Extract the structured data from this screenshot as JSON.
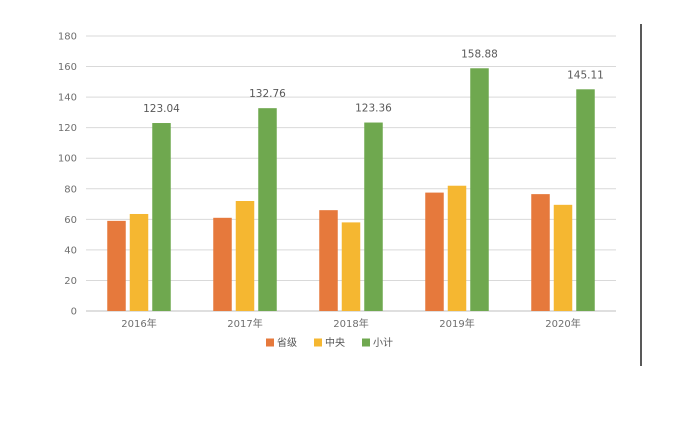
{
  "chart_data": {
    "type": "bar",
    "categories": [
      "2016年",
      "2017年",
      "2018年",
      "2019年",
      "2020年"
    ],
    "series": [
      {
        "name": "省级",
        "values": [
          59,
          61,
          66,
          77.5,
          76.5
        ],
        "color": "#e6793c"
      },
      {
        "name": "中央",
        "values": [
          63.5,
          72,
          58,
          82,
          69.5
        ],
        "color": "#f5b731"
      },
      {
        "name": "小计",
        "values": [
          123.04,
          132.76,
          123.36,
          158.88,
          145.11
        ],
        "color": "#6fa84f"
      }
    ],
    "data_labels": [
      "123.04",
      "132.76",
      "123.36",
      "158.88",
      "145.11"
    ],
    "ylim": [
      0,
      180
    ],
    "y_ticks": [
      0,
      20,
      40,
      60,
      80,
      100,
      120,
      140,
      160,
      180
    ],
    "grid": true,
    "legend_position": "bottom",
    "title": "",
    "xlabel": "",
    "ylabel": ""
  }
}
